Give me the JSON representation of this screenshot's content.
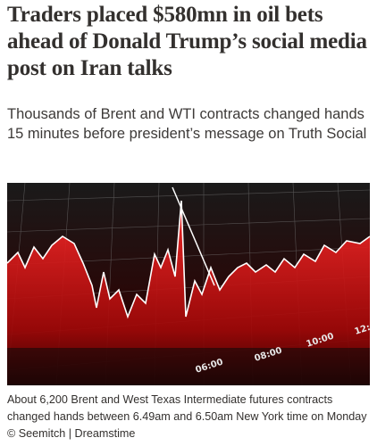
{
  "article": {
    "headline": "Traders placed $580mn in oil bets ahead of Donald Trump’s social media post on Iran talks",
    "standfirst": "Thousands of Brent and WTI contracts changed hands 15 minutes before president’s message on Truth Social",
    "image": {
      "labels": [
        "06:00",
        "08:00",
        "10:00",
        "12:"
      ]
    },
    "caption": "About 6,200 Brent and West Texas Intermediate futures contracts changed hands between 6.49am and 6.50am New York time on Monday © Seemitch | Dreamstime"
  }
}
